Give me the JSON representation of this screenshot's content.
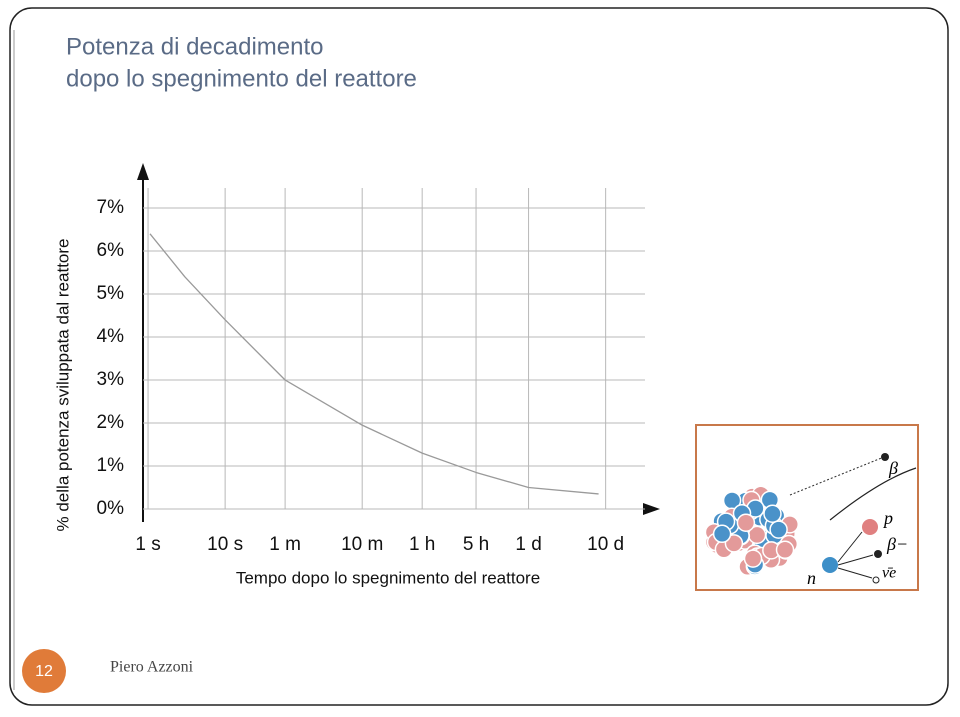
{
  "chart_data": {
    "type": "line",
    "log_x": true,
    "grid": true,
    "title": "Potenza di decadimento",
    "subtitle": "dopo lo spegnimento del reattore",
    "xlabel": "Tempo dopo lo spegnimento del reattore",
    "ylabel": "% della potenza sviluppata dal reattore",
    "xlim": [
      0.86,
      2800000
    ],
    "ylim": [
      0,
      8
    ],
    "xticks": [
      {
        "value": 1,
        "label": "1 s"
      },
      {
        "value": 10,
        "label": "10 s"
      },
      {
        "value": 60,
        "label": "1 m"
      },
      {
        "value": 600,
        "label": "10 m"
      },
      {
        "value": 3600,
        "label": "1 h"
      },
      {
        "value": 18000,
        "label": "5 h"
      },
      {
        "value": 86400,
        "label": "1 d"
      },
      {
        "value": 864000,
        "label": "10 d"
      }
    ],
    "yticks": [
      {
        "value": 0,
        "label": "0%"
      },
      {
        "value": 1,
        "label": "1%"
      },
      {
        "value": 2,
        "label": "2%"
      },
      {
        "value": 3,
        "label": "3%"
      },
      {
        "value": 4,
        "label": "4%"
      },
      {
        "value": 5,
        "label": "5%"
      },
      {
        "value": 6,
        "label": "6%"
      },
      {
        "value": 7,
        "label": "7%"
      }
    ],
    "x": [
      1.06,
      3,
      10,
      60,
      600,
      3600,
      18000,
      86400,
      700000
    ],
    "series": [
      {
        "color": "#9a9a9a",
        "values": [
          6.4,
          5.4,
          4.4,
          3.0,
          1.95,
          1.3,
          0.85,
          0.5,
          0.35
        ]
      }
    ]
  },
  "illustration": {
    "labels": [
      "β",
      "p",
      "β−",
      "ν̄e",
      "n"
    ]
  },
  "footer": {
    "page": "12",
    "author": "Piero Azzoni"
  }
}
